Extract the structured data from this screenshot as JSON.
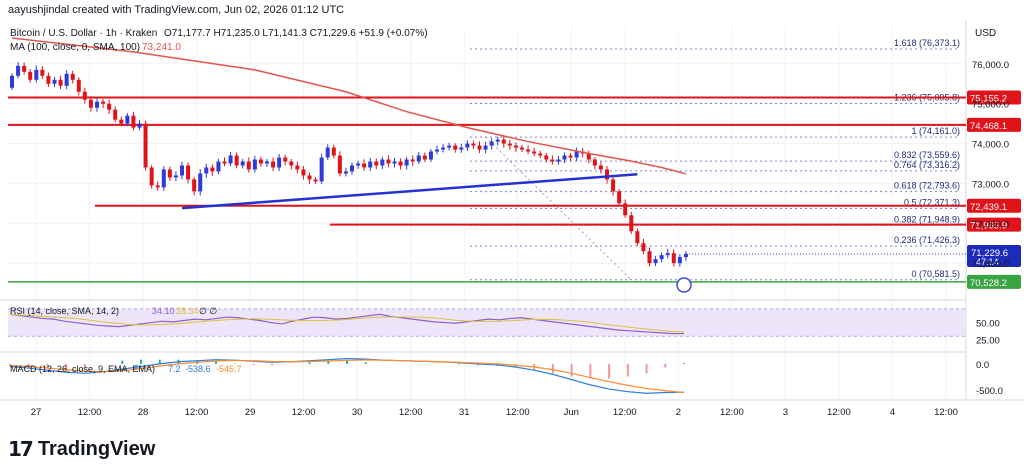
{
  "header": {
    "author_line": "aayushjindal created with TradingView.com, Jun 02, 2026 01:12 UTC"
  },
  "legend": {
    "symbol": "Bitcoin / U.S. Dollar · 1h · Kraken",
    "ohlc": "O71,177.7  H71,235.0  L71,141.3  C71,229.6  +51.9 (+0.07%)",
    "ma_label": "MA (100, close, 0, SMA, 100)",
    "ma_value": "73,241.0"
  },
  "rsi": {
    "label": "RSI (14, close, SMA, 14, 2)",
    "value1": "34.10",
    "value2": "28.34",
    "extra": "∅ ∅",
    "ticks": [
      "50.00",
      "25.00"
    ]
  },
  "macd": {
    "label": "MACD (12, 26, close, 9, EMA, EMA)",
    "v1": "7.2",
    "v2": "-538.6",
    "v3": "-545.7",
    "ticks": [
      "0.0",
      "-500.0"
    ]
  },
  "currency": "USD",
  "colors": {
    "up": "#2f3bd8",
    "down": "#e0131b",
    "ma": "#e5534b",
    "trend": "#2432d1",
    "fib": "#7b88c8",
    "green": "#3aa342",
    "rsi": "#8f5fc9",
    "macd": "#2d7fe0",
    "signal": "#ff8c2e"
  },
  "chart_data": {
    "type": "line",
    "title": "Bitcoin / U.S. Dollar · 1h · Kraken",
    "x_labels": [
      "27",
      "12:00",
      "28",
      "12:00",
      "29",
      "12:00",
      "30",
      "12:00",
      "31",
      "12:00",
      "Jun",
      "12:00",
      "2",
      "12:00",
      "3",
      "12:00",
      "4",
      "12:00"
    ],
    "y_ticks": [
      "76,000.0",
      "75,000.0",
      "74,000.0",
      "73,000.0",
      "72,000.0",
      "71,000.0"
    ],
    "ylim": [
      70200,
      76900
    ],
    "price_close": [
      75700,
      75950,
      75800,
      75600,
      75850,
      75700,
      75500,
      75600,
      75450,
      75750,
      75600,
      75300,
      75100,
      74900,
      75050,
      75000,
      74850,
      74600,
      74500,
      74700,
      74400,
      74500,
      73400,
      72950,
      72900,
      73350,
      73150,
      73200,
      73450,
      73100,
      72800,
      73250,
      73400,
      73300,
      73550,
      73500,
      73700,
      73450,
      73550,
      73350,
      73600,
      73500,
      73550,
      73400,
      73650,
      73550,
      73450,
      73350,
      73200,
      73100,
      73050,
      73650,
      73900,
      73700,
      73250,
      73300,
      73450,
      73500,
      73400,
      73550,
      73450,
      73600,
      73500,
      73550,
      73450,
      73600,
      73550,
      73700,
      73600,
      73800,
      73850,
      73900,
      73950,
      73850,
      73900,
      74000,
      73950,
      73850,
      73950,
      74050,
      74100,
      74000,
      73950,
      73900,
      73850,
      73800,
      73750,
      73700,
      73600,
      73550,
      73600,
      73700,
      73650,
      73800,
      73750,
      73600,
      73450,
      73350,
      73100,
      72800,
      72500,
      72200,
      71800,
      71500,
      71300,
      71000,
      71100,
      71200,
      71250,
      71000,
      71150,
      71230
    ],
    "price_open_first": 75400,
    "ma100": [
      {
        "x": 0,
        "y": 76650
      },
      {
        "x": 20,
        "y": 76300
      },
      {
        "x": 40,
        "y": 75850
      },
      {
        "x": 55,
        "y": 75300
      },
      {
        "x": 65,
        "y": 74800
      },
      {
        "x": 75,
        "y": 74400
      },
      {
        "x": 85,
        "y": 74050
      },
      {
        "x": 95,
        "y": 73750
      },
      {
        "x": 102,
        "y": 73560
      },
      {
        "x": 107,
        "y": 73400
      },
      {
        "x": 111,
        "y": 73241
      }
    ],
    "trendline": [
      {
        "x": 28,
        "y": 72380
      },
      {
        "x": 103,
        "y": 73230
      }
    ],
    "support_line": [
      {
        "x": 45,
        "y": 72480
      },
      {
        "x": 103,
        "y": 72480
      }
    ],
    "horizontal_levels": [
      {
        "value": 75155.2,
        "label": "75,155.2"
      },
      {
        "value": 74468.1,
        "label": "74,468.1"
      },
      {
        "value": 72439.1,
        "label": "72,439.1"
      },
      {
        "value": 71965.9,
        "label": "71,965.9"
      },
      {
        "value": 70528.2,
        "label": "70,528.2"
      }
    ],
    "last_price": {
      "value": 71229.6,
      "label": "71,229.6",
      "countdown": "47:14"
    },
    "fib_levels": [
      {
        "label": "1.618 (76,373.1)",
        "value": 76373.1
      },
      {
        "label": "1.236 (75,005.8)",
        "value": 75005.8
      },
      {
        "label": "1 (74,161.0)",
        "value": 74161.0
      },
      {
        "label": "0.832 (73,559.6)",
        "value": 73559.6
      },
      {
        "label": "0.764 (73,316.2)",
        "value": 73316.2
      },
      {
        "label": "0.618 (72,793.6)",
        "value": 72793.6
      },
      {
        "label": "0.5 (72,371.3)",
        "value": 72371.3
      },
      {
        "label": "0.382 (71,948.9)",
        "value": 71948.9
      },
      {
        "label": "0.236 (71,426.3)",
        "value": 71426.3
      },
      {
        "label": "0 (70,581.5)",
        "value": 70581.5
      }
    ],
    "rsi_values": [
      62,
      60,
      58,
      56,
      55,
      52,
      50,
      48,
      46,
      45,
      44,
      46,
      48,
      50,
      52,
      51,
      53,
      55,
      54,
      56,
      58,
      57,
      55,
      53,
      50,
      48,
      52,
      55,
      58,
      57,
      55,
      56,
      58,
      60,
      62,
      59,
      57,
      55,
      53,
      51,
      50,
      49,
      51,
      53,
      55,
      54,
      56,
      57,
      55,
      53,
      51,
      49,
      47,
      45,
      43,
      41,
      39,
      38,
      37,
      36,
      35,
      34,
      34
    ],
    "macd_values": [
      -50,
      -80,
      -120,
      -160,
      -180,
      -150,
      -100,
      -50,
      0,
      40,
      60,
      80,
      70,
      50,
      30,
      40,
      60,
      80,
      100,
      90,
      70,
      60,
      50,
      40,
      20,
      0,
      -20,
      -60,
      -120,
      -200,
      -300,
      -400,
      -480,
      -530,
      -560,
      -545,
      -539
    ],
    "signal_values": [
      -30,
      -50,
      -80,
      -110,
      -140,
      -150,
      -130,
      -90,
      -40,
      0,
      30,
      55,
      65,
      60,
      45,
      40,
      45,
      55,
      65,
      75,
      70,
      60,
      50,
      40,
      30,
      15,
      0,
      -25,
      -60,
      -110,
      -180,
      -260,
      -340,
      -410,
      -470,
      -510,
      -546
    ]
  }
}
